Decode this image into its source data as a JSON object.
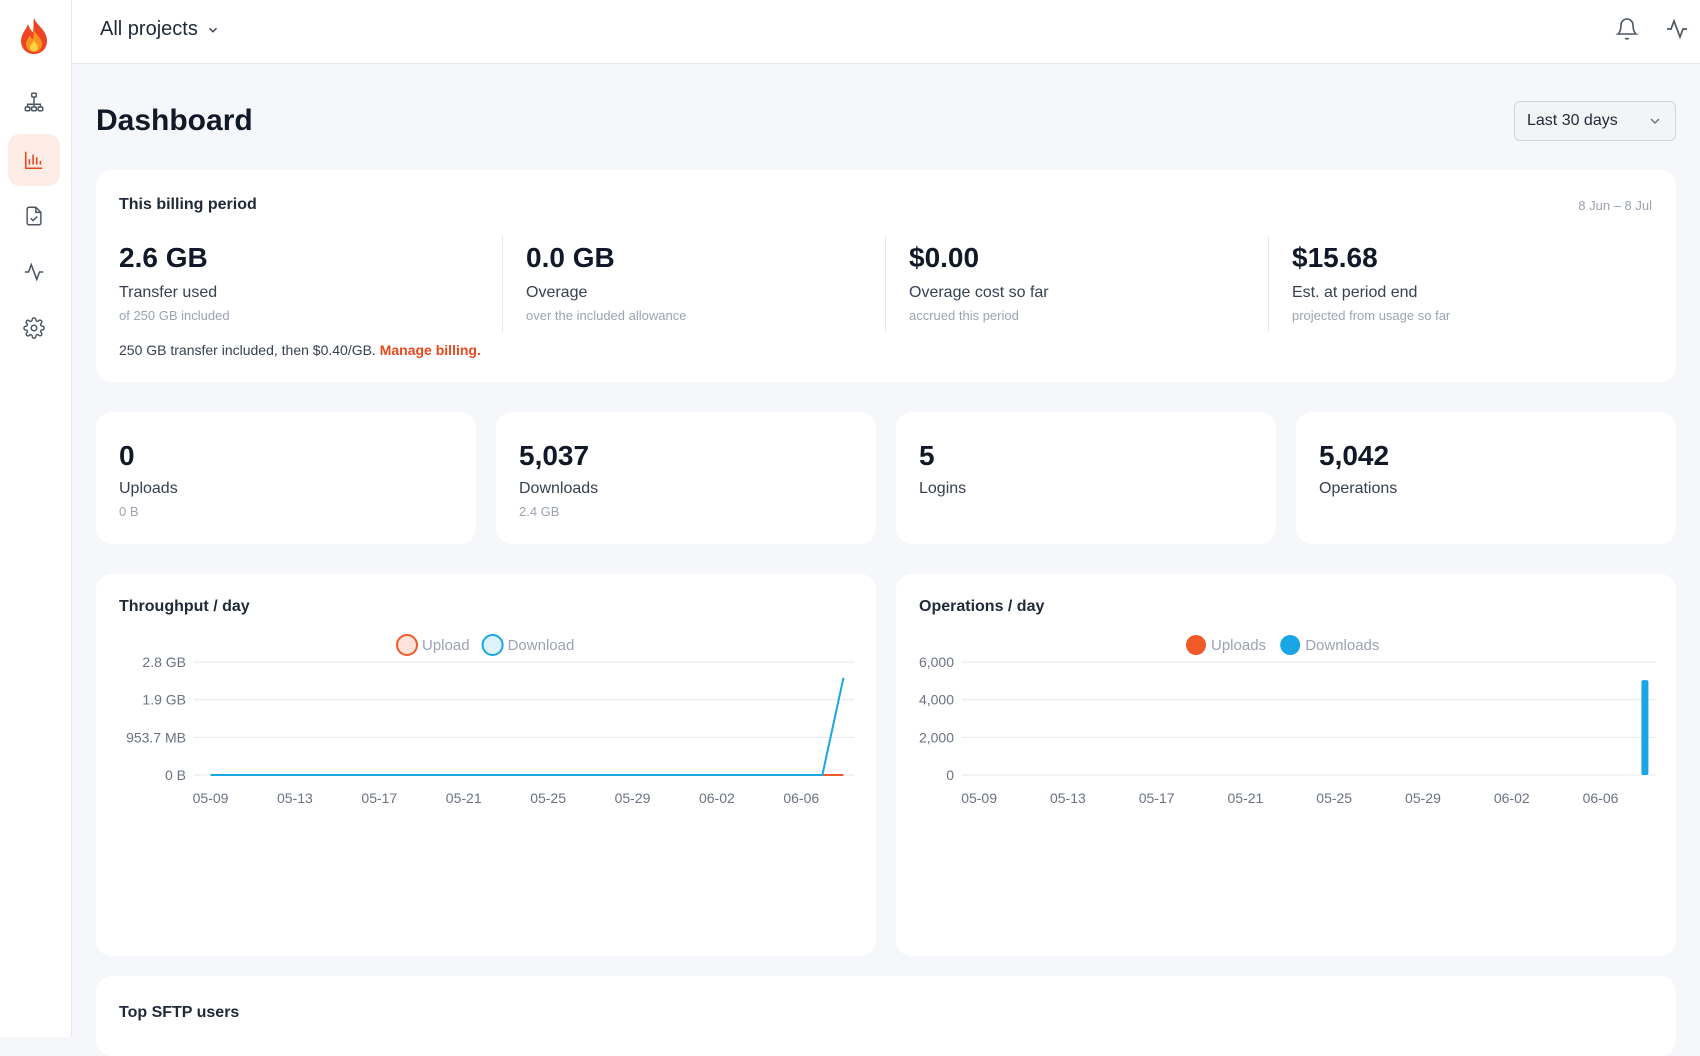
{
  "app": {
    "project_selector": "All projects"
  },
  "sidebar": {
    "items": [
      {
        "name": "sitemap-icon"
      },
      {
        "name": "bar-chart-icon",
        "active": true
      },
      {
        "name": "file-check-icon"
      },
      {
        "name": "activity-icon"
      },
      {
        "name": "gear-icon"
      }
    ]
  },
  "header": {
    "title": "Dashboard",
    "range": "Last 30 days"
  },
  "billing": {
    "title": "This billing period",
    "period": "8 Jun – 8 Jul",
    "stats": [
      {
        "value": "2.6 GB",
        "label": "Transfer used",
        "sub": "of 250 GB included"
      },
      {
        "value": "0.0 GB",
        "label": "Overage",
        "sub": "over the included allowance"
      },
      {
        "value": "$0.00",
        "label": "Overage cost so far",
        "sub": "accrued this period"
      },
      {
        "value": "$15.68",
        "label": "Est. at period end",
        "sub": "projected from usage so far"
      }
    ],
    "note": "250 GB transfer included, then $0.40/GB.",
    "link": "Manage billing."
  },
  "summary": [
    {
      "value": "0",
      "label": "Uploads",
      "sub": "0 B"
    },
    {
      "value": "5,037",
      "label": "Downloads",
      "sub": "2.4 GB"
    },
    {
      "value": "5",
      "label": "Logins",
      "sub": ""
    },
    {
      "value": "5,042",
      "label": "Operations",
      "sub": ""
    }
  ],
  "colors": {
    "accent": "#e8481c",
    "upload": "#f05a28",
    "download": "#1aa6e4"
  },
  "chart_data": [
    {
      "type": "line",
      "title": "Throughput / day",
      "legend": [
        "Upload",
        "Download"
      ],
      "x": [
        "05-09",
        "05-10",
        "05-11",
        "05-12",
        "05-13",
        "05-14",
        "05-15",
        "05-16",
        "05-17",
        "05-18",
        "05-19",
        "05-20",
        "05-21",
        "05-22",
        "05-23",
        "05-24",
        "05-25",
        "05-26",
        "05-27",
        "05-28",
        "05-29",
        "05-30",
        "05-31",
        "06-01",
        "06-02",
        "06-03",
        "06-04",
        "06-05",
        "06-06",
        "06-07",
        "06-08"
      ],
      "x_ticks": [
        "05-09",
        "05-13",
        "05-17",
        "05-21",
        "05-25",
        "05-29",
        "06-02",
        "06-06"
      ],
      "y_ticks": [
        "0 B",
        "953.7 MB",
        "1.9 GB",
        "2.8 GB"
      ],
      "ylim_gb": [
        0,
        2.79
      ],
      "series": [
        {
          "name": "Upload",
          "values_gb": [
            0,
            0,
            0,
            0,
            0,
            0,
            0,
            0,
            0,
            0,
            0,
            0,
            0,
            0,
            0,
            0,
            0,
            0,
            0,
            0,
            0,
            0,
            0,
            0,
            0,
            0,
            0,
            0,
            0,
            0,
            0
          ]
        },
        {
          "name": "Download",
          "values_gb": [
            0,
            0,
            0,
            0,
            0,
            0,
            0,
            0,
            0,
            0,
            0,
            0,
            0,
            0,
            0,
            0,
            0,
            0,
            0,
            0,
            0,
            0,
            0,
            0,
            0,
            0,
            0,
            0,
            0,
            0,
            2.4
          ]
        }
      ]
    },
    {
      "type": "bar",
      "title": "Operations / day",
      "legend": [
        "Uploads",
        "Downloads"
      ],
      "x": [
        "05-09",
        "05-10",
        "05-11",
        "05-12",
        "05-13",
        "05-14",
        "05-15",
        "05-16",
        "05-17",
        "05-18",
        "05-19",
        "05-20",
        "05-21",
        "05-22",
        "05-23",
        "05-24",
        "05-25",
        "05-26",
        "05-27",
        "05-28",
        "05-29",
        "05-30",
        "05-31",
        "06-01",
        "06-02",
        "06-03",
        "06-04",
        "06-05",
        "06-06",
        "06-07",
        "06-08"
      ],
      "x_ticks": [
        "05-09",
        "05-13",
        "05-17",
        "05-21",
        "05-25",
        "05-29",
        "06-02",
        "06-06"
      ],
      "y_ticks": [
        "0",
        "2,000",
        "4,000",
        "6,000"
      ],
      "ylim": [
        0,
        6000
      ],
      "series": [
        {
          "name": "Uploads",
          "values": [
            0,
            0,
            0,
            0,
            0,
            0,
            0,
            0,
            0,
            0,
            0,
            0,
            0,
            0,
            0,
            0,
            0,
            0,
            0,
            0,
            0,
            0,
            0,
            0,
            0,
            0,
            0,
            0,
            0,
            0,
            0
          ]
        },
        {
          "name": "Downloads",
          "values": [
            0,
            0,
            0,
            0,
            0,
            0,
            0,
            0,
            0,
            0,
            0,
            0,
            0,
            0,
            0,
            0,
            0,
            0,
            0,
            0,
            0,
            0,
            0,
            0,
            0,
            0,
            0,
            0,
            0,
            0,
            5037
          ]
        }
      ]
    }
  ],
  "users": {
    "title": "Top SFTP users"
  }
}
